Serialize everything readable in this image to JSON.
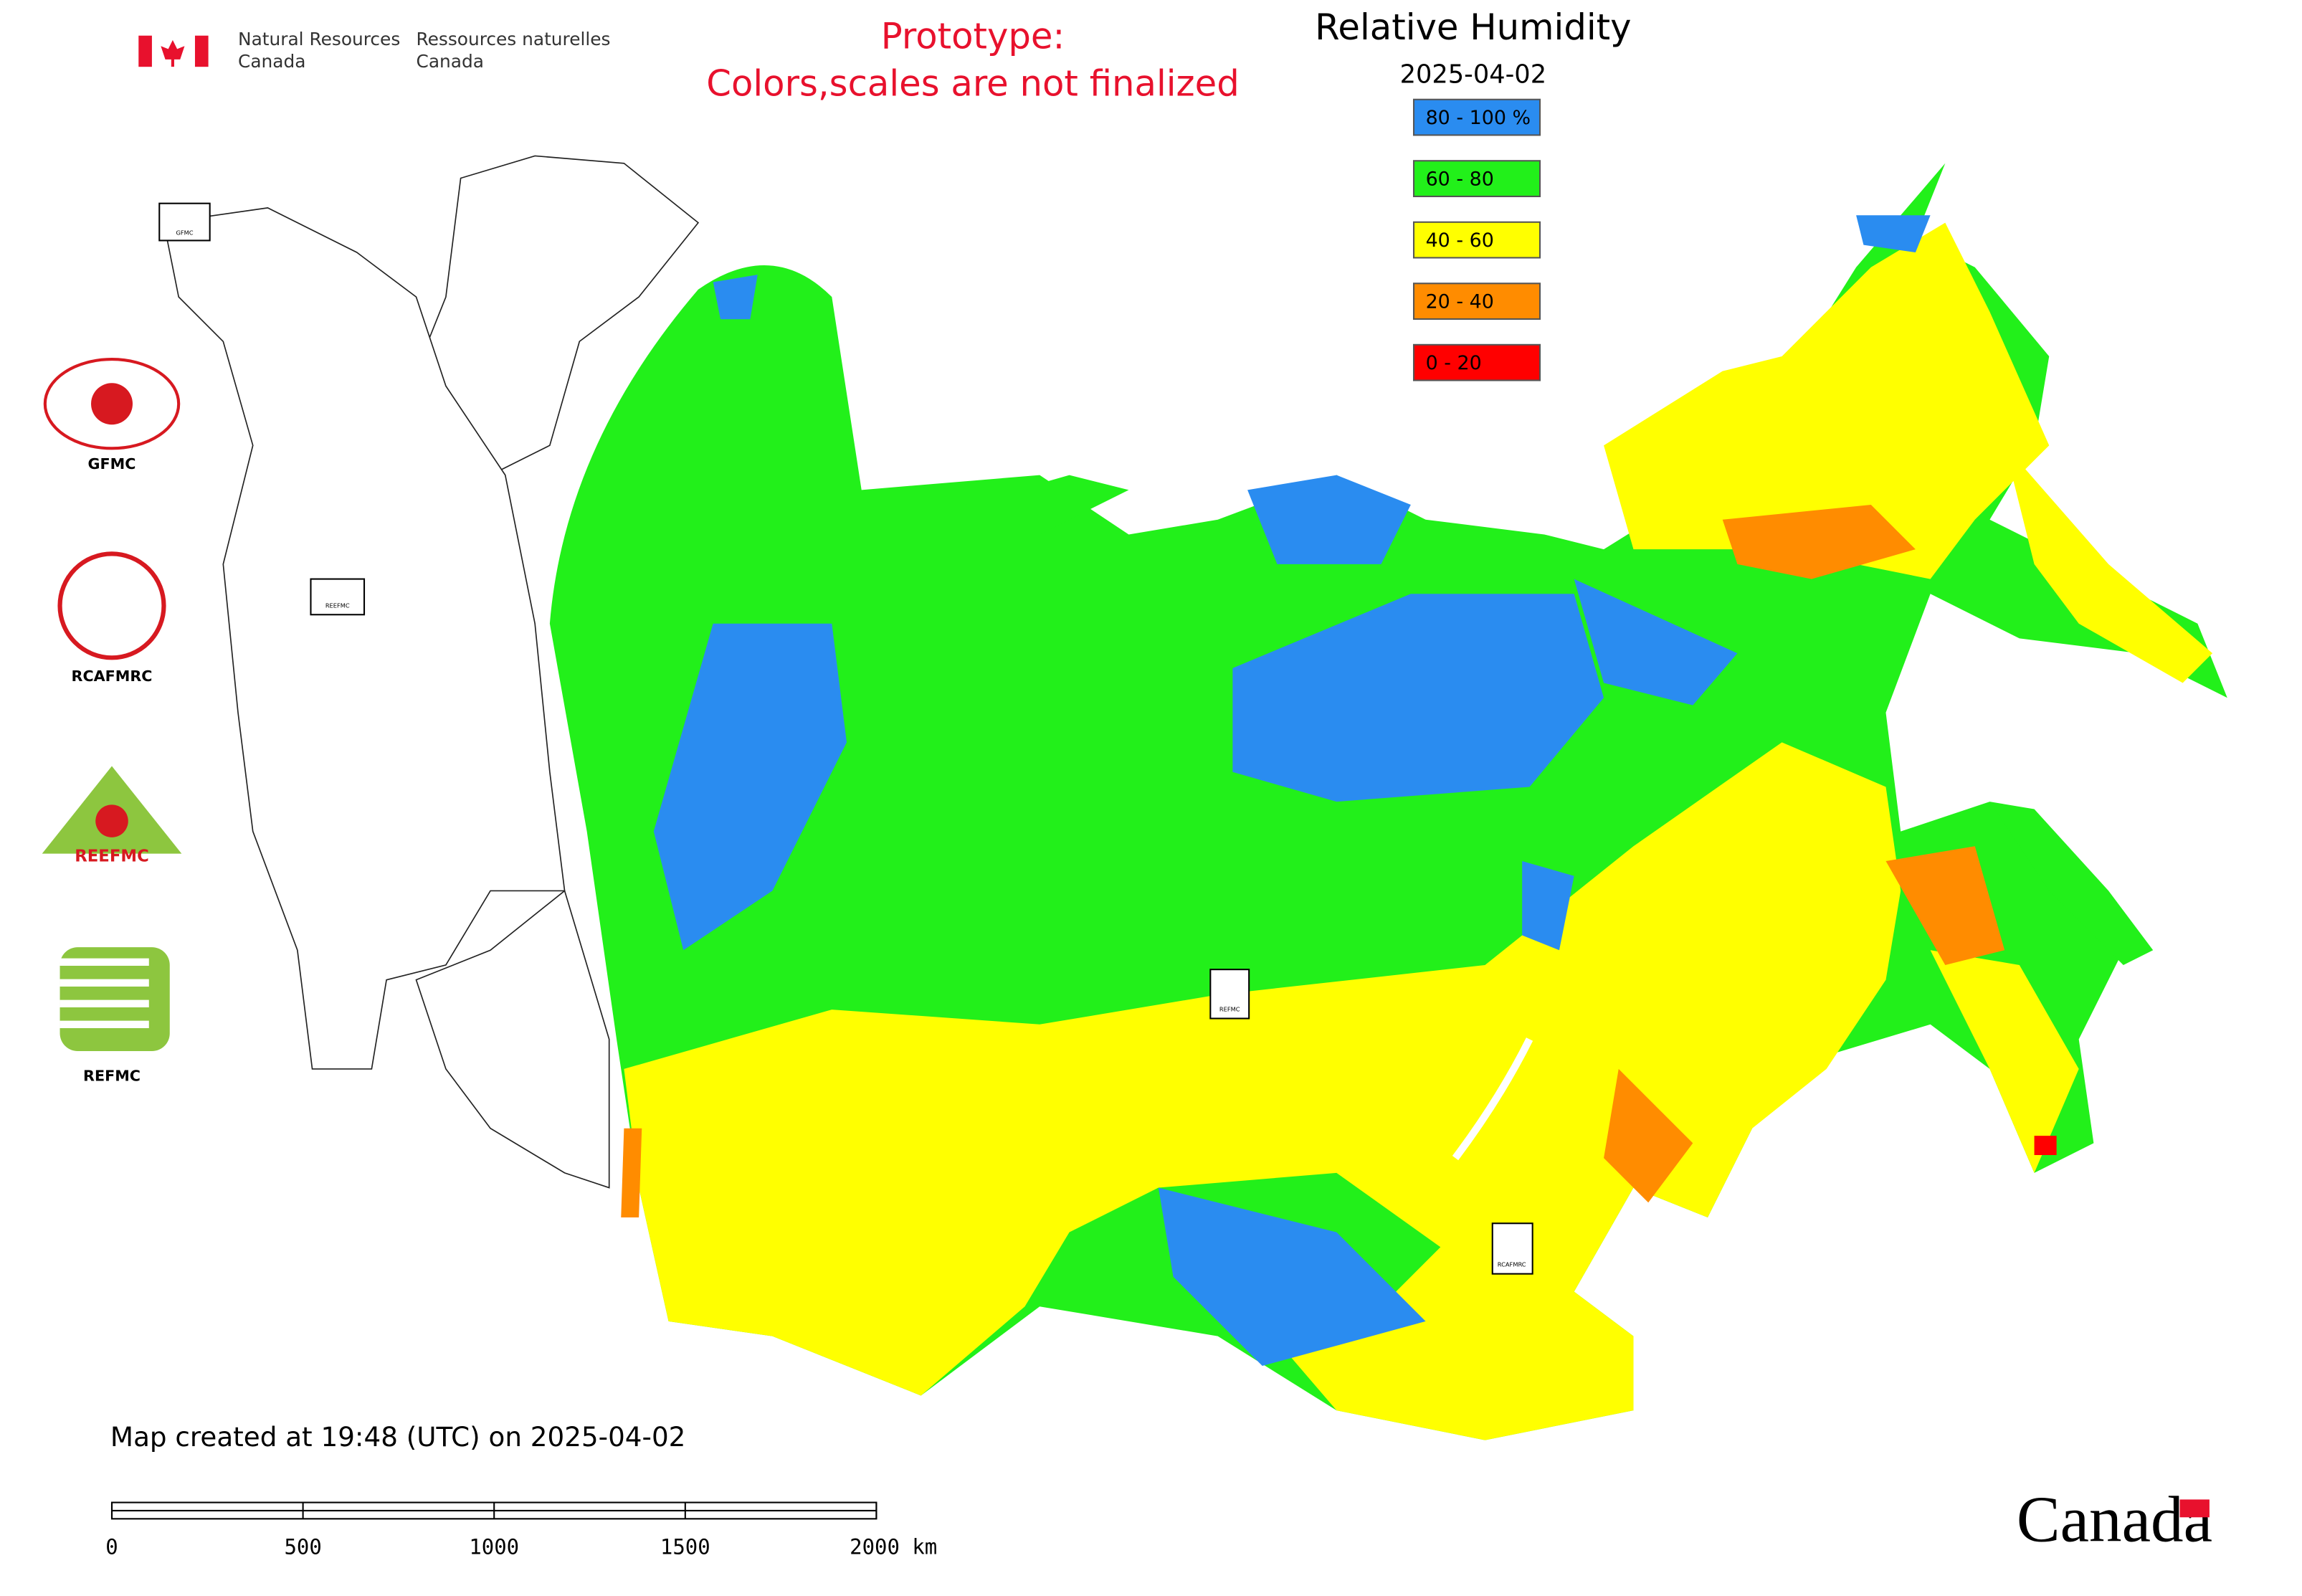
{
  "header": {
    "agency_en": [
      "Natural Resources",
      "Canada"
    ],
    "agency_fr": [
      "Ressources naturelles",
      "Canada"
    ],
    "notice": [
      "Prototype:",
      "Colors,scales are not finalized"
    ]
  },
  "legend": {
    "title": "Relative Humidity",
    "date": "2025-04-02",
    "items": [
      {
        "label": "80 - 100 %",
        "color": "#2a8cf0"
      },
      {
        "label": "60 - 80",
        "color": "#22f01a"
      },
      {
        "label": "40 - 60",
        "color": "#ffff00"
      },
      {
        "label": "20 - 40",
        "color": "#ff8c00"
      },
      {
        "label": "0 - 20",
        "color": "#ff0000"
      }
    ]
  },
  "logos": [
    "GFMC",
    "RCAFMRC",
    "REEFMC",
    "REFMC"
  ],
  "map_markers": [
    "GFMC",
    "REEFMC",
    "REFMC",
    "RCAFMRC"
  ],
  "footer": {
    "created": "Map created at 19:48 (UTC) on 2025-04-02",
    "scale_labels": [
      "0",
      "500",
      "1000",
      "1500",
      "2000 km"
    ],
    "wordmark": "Canada"
  }
}
